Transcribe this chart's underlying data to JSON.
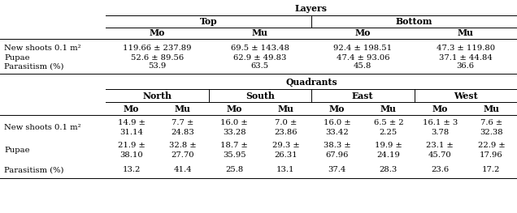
{
  "title_layers": "Layers",
  "title_quadrants": "Quadrants",
  "layers_top_header": "Top",
  "layers_bottom_header": "Bottom",
  "quadrants_headers": [
    "North",
    "South",
    "East",
    "West"
  ],
  "mo_mu": [
    "Mo",
    "Mu"
  ],
  "row_labels": [
    "New shoots 0.1 m²",
    "Pupae",
    "Parasitism (%)"
  ],
  "layers_data": [
    [
      "119.66 ± 237.89",
      "69.5 ± 143.48",
      "92.4 ± 198.51",
      "47.3 ± 119.80"
    ],
    [
      "52.6 ± 89.56",
      "62.9 ± 49.83",
      "47.4 ± 93.06",
      "37.1 ± 44.84"
    ],
    [
      "53.9",
      "63.5",
      "45.8",
      "36.6"
    ]
  ],
  "quadrants_data_line1": [
    [
      "14.9 ±",
      "7.7 ±",
      "16.0 ±",
      "7.0 ±",
      "16.0 ±",
      "6.5 ± 2",
      "16.1 ± 3",
      "7.6 ±"
    ],
    [
      "21.9 ±",
      "32.8 ±",
      "18.7 ±",
      "29.3 ±",
      "38.3 ±",
      "19.9 ±",
      "23.1 ±",
      "22.9 ±"
    ]
  ],
  "quadrants_data_line2": [
    [
      "31.14",
      "24.83",
      "33.28",
      "23.86",
      "33.42",
      "2.25",
      "3.78",
      "32.38"
    ],
    [
      "38.10",
      "27.70",
      "35.95",
      "26.31",
      "67.96",
      "24.19",
      "45.70",
      "17.96"
    ]
  ],
  "quadrants_parasitism": [
    "13.2",
    "41.4",
    "25.8",
    "13.1",
    "37.4",
    "28.3",
    "23.6",
    "17.2"
  ],
  "fs": 7.2,
  "hfs": 7.8
}
